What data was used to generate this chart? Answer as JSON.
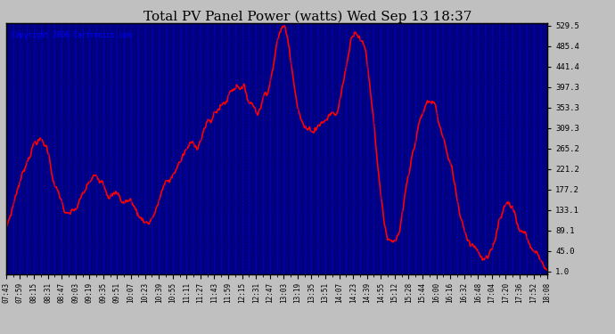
{
  "title": "Total PV Panel Power (watts) Wed Sep 13 18:37",
  "copyright_text": "Copyright 2006 Cartronics.com",
  "background_color": "#000080",
  "plot_bg_color": "#000080",
  "line_color": "#FF0000",
  "grid_color": "#0000FF",
  "text_color": "#FFFF00",
  "title_color": "#000000",
  "border_color": "#000000",
  "ytick_labels": [
    "1.0",
    "45.0",
    "89.1",
    "133.1",
    "177.2",
    "221.2",
    "265.2",
    "309.3",
    "353.3",
    "397.3",
    "441.4",
    "485.4",
    "529.5"
  ],
  "ytick_values": [
    1.0,
    45.0,
    89.1,
    133.1,
    177.2,
    221.2,
    265.2,
    309.3,
    353.3,
    397.3,
    441.4,
    485.4,
    529.5
  ],
  "xtick_labels": [
    "07:43",
    "07:59",
    "08:15",
    "08:31",
    "08:47",
    "09:03",
    "09:19",
    "09:35",
    "09:51",
    "10:07",
    "10:23",
    "10:39",
    "10:55",
    "11:11",
    "11:27",
    "11:43",
    "11:59",
    "12:15",
    "12:31",
    "12:47",
    "13:03",
    "13:19",
    "13:35",
    "13:51",
    "14:07",
    "14:23",
    "14:39",
    "14:55",
    "15:12",
    "15:28",
    "15:44",
    "16:00",
    "16:16",
    "16:32",
    "16:48",
    "17:04",
    "17:20",
    "17:36",
    "17:52",
    "18:08"
  ],
  "ymin": 1.0,
  "ymax": 529.5,
  "line_width": 1.2
}
